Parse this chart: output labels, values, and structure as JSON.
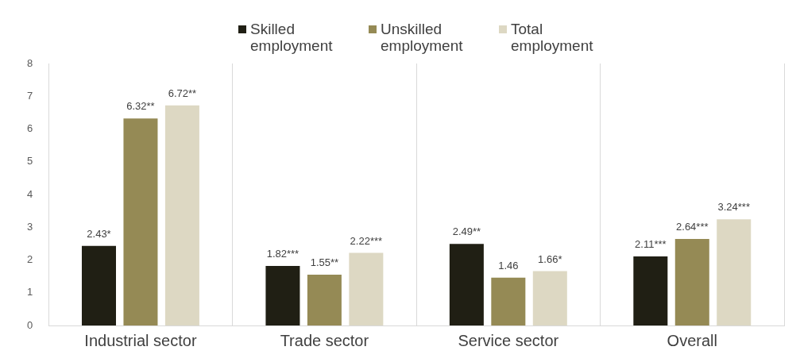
{
  "chart_data": {
    "type": "bar",
    "categories": [
      "Industrial sector",
      "Trade sector",
      "Service sector",
      "Overall"
    ],
    "series": [
      {
        "name": "Skilled employment",
        "color": "#201f14",
        "values": [
          2.43,
          1.82,
          2.49,
          2.11
        ],
        "value_labels": [
          "2.43*",
          "1.82***",
          "2.49**",
          "2.11***"
        ]
      },
      {
        "name": "Unskilled employment",
        "color": "#958a55",
        "values": [
          6.32,
          1.55,
          1.46,
          2.64
        ],
        "value_labels": [
          "6.32**",
          "1.55**",
          "1.46",
          "2.64***"
        ]
      },
      {
        "name": "Total employment",
        "color": "#ddd8c3",
        "values": [
          6.72,
          2.22,
          1.66,
          3.24
        ],
        "value_labels": [
          "6.72**",
          "2.22***",
          "1.66*",
          "3.24***"
        ]
      }
    ],
    "ylim": [
      0,
      8
    ],
    "yticks": [
      0,
      1,
      2,
      3,
      4,
      5,
      6,
      7,
      8
    ],
    "grid": "x",
    "legend": "top"
  }
}
